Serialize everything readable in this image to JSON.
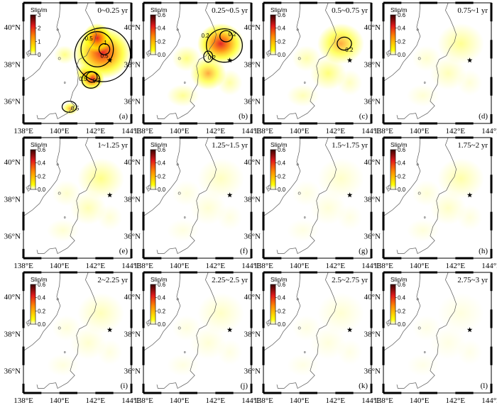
{
  "colors": {
    "low": "#ffffff",
    "yellow": "#ffff00",
    "orange": "#ff8c00",
    "red": "#e31a1c",
    "dark": "#3a0000",
    "coast": "#555555",
    "contour": "#000000"
  },
  "chart_data": {
    "type": "heatmap",
    "variable": "Slip/m",
    "x_ticks": [
      "138°E",
      "140°E",
      "142°E",
      "144°E"
    ],
    "y_ticks": [
      "40°N",
      "38°N",
      "36°N"
    ],
    "xlim": [
      138,
      144
    ],
    "ylim": [
      34.8,
      41.3
    ],
    "epicenter": {
      "lon": 142.8,
      "lat": 38.2
    },
    "panels": [
      {
        "letter": "(a)",
        "title": "0~0.25 yr",
        "cbar_max": 3,
        "cbar_ticks": [
          "3",
          "2",
          "1",
          "0"
        ],
        "contour_labels": [
          "0.5",
          "1",
          "0.5",
          "0.5",
          "0.5",
          "0.5"
        ],
        "intensity": 1.0,
        "northShift": 0
      },
      {
        "letter": "(b)",
        "title": "0.25~0.5 yr",
        "cbar_max": 0.6,
        "cbar_ticks": [
          "0.6",
          "0.4",
          "0.2",
          "0.0"
        ],
        "contour_labels": [
          "0.2",
          "0.2",
          "0.2"
        ],
        "intensity": 0.85,
        "northShift": 1
      },
      {
        "letter": "(c)",
        "title": "0.5~0.75 yr",
        "cbar_max": 0.6,
        "cbar_ticks": [
          "0.6",
          "0.4",
          "0.2",
          "0.0"
        ],
        "contour_labels": [
          "0.2"
        ],
        "intensity": 0.5,
        "northShift": 1
      },
      {
        "letter": "(d)",
        "title": "0.75~1 yr",
        "cbar_max": 0.6,
        "cbar_ticks": [
          "0.6",
          "0.4",
          "0.2",
          "0.0"
        ],
        "contour_labels": [],
        "intensity": 0.22,
        "northShift": 1
      },
      {
        "letter": "(e)",
        "title": "1~1.25 yr",
        "cbar_max": 0.6,
        "cbar_ticks": [
          "0.6",
          "0.4",
          "0.2",
          "0.0"
        ],
        "contour_labels": [],
        "intensity": 0.24,
        "northShift": 1
      },
      {
        "letter": "(f)",
        "title": "1.25~1.5 yr",
        "cbar_max": 0.6,
        "cbar_ticks": [
          "0.6",
          "0.4",
          "0.2",
          "0.0"
        ],
        "contour_labels": [],
        "intensity": 0.1,
        "northShift": 1
      },
      {
        "letter": "(g)",
        "title": "1.5~1.75 yr",
        "cbar_max": 0.6,
        "cbar_ticks": [
          "0.6",
          "0.4",
          "0.2",
          "0.0"
        ],
        "contour_labels": [],
        "intensity": 0.08,
        "northShift": 1
      },
      {
        "letter": "(h)",
        "title": "1.75~2 yr",
        "cbar_max": 0.6,
        "cbar_ticks": [
          "0.6",
          "0.4",
          "0.2",
          "0.0"
        ],
        "contour_labels": [],
        "intensity": 0.16,
        "northShift": 1
      },
      {
        "letter": "(i)",
        "title": "2~2.25 yr",
        "cbar_max": 0.6,
        "cbar_ticks": [
          "0.6",
          "0.4",
          "0.2",
          "0.0"
        ],
        "contour_labels": [],
        "intensity": 0.12,
        "northShift": 1
      },
      {
        "letter": "(j)",
        "title": "2.25~2.5 yr",
        "cbar_max": 0.6,
        "cbar_ticks": [
          "0.6",
          "0.4",
          "0.2",
          "0.0"
        ],
        "contour_labels": [],
        "intensity": 0.09,
        "northShift": 1
      },
      {
        "letter": "(k)",
        "title": "2.5~2.75 yr",
        "cbar_max": 0.6,
        "cbar_ticks": [
          "0.6",
          "0.4",
          "0.2",
          "0.0"
        ],
        "contour_labels": [],
        "intensity": 0.06,
        "northShift": 1
      },
      {
        "letter": "(l)",
        "title": "2.75~3 yr",
        "cbar_max": 0.6,
        "cbar_ticks": [
          "0.6",
          "0.4",
          "0.2",
          "0.0"
        ],
        "contour_labels": [],
        "intensity": 0.03,
        "northShift": 1
      }
    ]
  }
}
